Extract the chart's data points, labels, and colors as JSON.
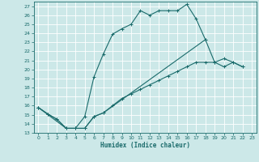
{
  "xlabel": "Humidex (Indice chaleur)",
  "bg_color": "#cce8e8",
  "grid_color": "#ffffff",
  "line_color": "#1a6b6b",
  "xlim": [
    -0.5,
    23.5
  ],
  "ylim": [
    13,
    27.5
  ],
  "xticks": [
    0,
    1,
    2,
    3,
    4,
    5,
    6,
    7,
    8,
    9,
    10,
    11,
    12,
    13,
    14,
    15,
    16,
    17,
    18,
    19,
    20,
    21,
    22,
    23
  ],
  "yticks": [
    13,
    14,
    15,
    16,
    17,
    18,
    19,
    20,
    21,
    22,
    23,
    24,
    25,
    26,
    27
  ],
  "line1_x": [
    0,
    1,
    2,
    3,
    4,
    5,
    6,
    7,
    8,
    9,
    10,
    11,
    12,
    13,
    14,
    15,
    16,
    17,
    18
  ],
  "line1_y": [
    15.8,
    15.1,
    14.5,
    13.5,
    13.5,
    14.8,
    19.2,
    21.7,
    23.9,
    24.5,
    25.0,
    26.5,
    26.0,
    26.5,
    26.5,
    26.5,
    27.2,
    25.6,
    23.3
  ],
  "line2_x": [
    0,
    1,
    2,
    3,
    4,
    5,
    6,
    7,
    8,
    9,
    10,
    11,
    12,
    13,
    14,
    15,
    16,
    17,
    18,
    19,
    20,
    21,
    22
  ],
  "line2_y": [
    15.8,
    15.1,
    14.5,
    13.5,
    13.5,
    13.5,
    14.8,
    15.2,
    16.0,
    16.8,
    17.3,
    17.8,
    18.3,
    18.8,
    19.3,
    19.8,
    20.3,
    20.8,
    20.8,
    20.8,
    20.3,
    20.8,
    20.3
  ],
  "line3_x": [
    0,
    3,
    4,
    5,
    6,
    7,
    18,
    19,
    20,
    21,
    22
  ],
  "line3_y": [
    15.8,
    13.5,
    13.5,
    13.5,
    14.8,
    15.2,
    23.3,
    20.8,
    21.2,
    20.8,
    20.3
  ]
}
